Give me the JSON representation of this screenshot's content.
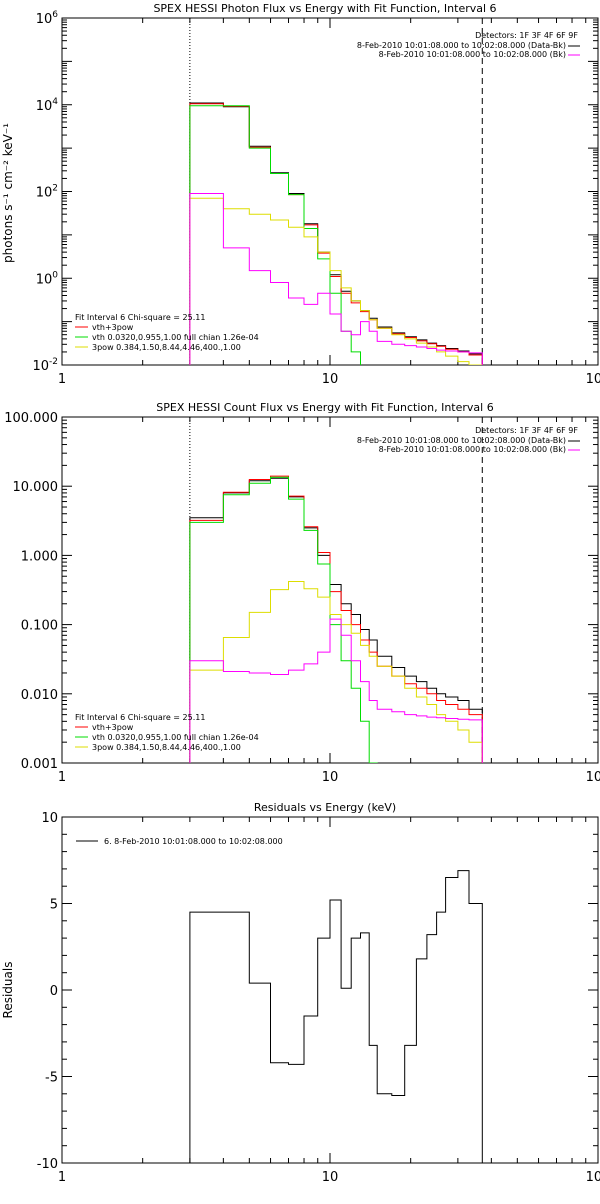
{
  "chart_data": [
    {
      "type": "line",
      "title": "SPEX HESSI Photon Flux vs Energy with Fit Function, Interval 6",
      "xlabel": "",
      "ylabel": "photons s⁻¹ cm⁻² keV⁻¹",
      "xscale": "log",
      "yscale": "log",
      "xlim": [
        1,
        100
      ],
      "ylim": [
        0.01,
        1000000
      ],
      "x_tick_labels": [
        "1",
        "10",
        "100"
      ],
      "y_ticks": [
        {
          "value": 0.01,
          "mantissa": "10",
          "exp": "-2"
        },
        {
          "value": 1,
          "mantissa": "10",
          "exp": "0"
        },
        {
          "value": 100,
          "mantissa": "10",
          "exp": "2"
        },
        {
          "value": 10000,
          "mantissa": "10",
          "exp": "4"
        },
        {
          "value": 1000000,
          "mantissa": "10",
          "exp": "6"
        }
      ],
      "header_lines": [
        "Detectors: 1F 3F 4F 6F 9F",
        "8-Feb-2010 10:01:08.000 to 10:02:08.000 (Data-Bk)",
        "8-Feb-2010 10:01:08.000 to 10:02:08.000 (Bk)"
      ],
      "legend_title": "Fit Interval 6   Chi-square = 25.11",
      "legend_entries": [
        {
          "label": "vth+3pow",
          "color": "#ff0000"
        },
        {
          "label": "vth 0.0320,0.955,1.00  full chian 1.26e-04",
          "color": "#00dd00"
        },
        {
          "label": "3pow 0.384,1.50,8.44,4.46,400.,1.00",
          "color": "#dddd00"
        }
      ],
      "vlines": [
        {
          "x": 3.0,
          "style": "dotted"
        },
        {
          "x": 37.0,
          "style": "dashed"
        }
      ],
      "bin_edges": [
        3.0,
        4.0,
        5.0,
        6.0,
        7.0,
        8.0,
        9.0,
        10.0,
        11.0,
        12.0,
        13.0,
        14.0,
        15.0,
        17.0,
        19.0,
        21.0,
        23.0,
        25.0,
        27.0,
        30.0,
        33.0,
        37.0
      ],
      "series": [
        {
          "color": "#000000",
          "values": [
            11000,
            9000,
            1100,
            270,
            90,
            18,
            4.0,
            1.2,
            0.5,
            0.3,
            0.18,
            0.12,
            0.075,
            0.055,
            0.045,
            0.038,
            0.032,
            0.028,
            0.024,
            0.021,
            0.018
          ]
        },
        {
          "color": "#ff0000",
          "values": [
            10500,
            9200,
            1050,
            260,
            85,
            17,
            3.8,
            1.1,
            0.45,
            0.27,
            0.17,
            0.11,
            0.07,
            0.052,
            0.043,
            0.036,
            0.031,
            0.027,
            0.023,
            0.02,
            0.017
          ]
        },
        {
          "color": "#00dd00",
          "values": [
            9500,
            9500,
            1000,
            260,
            85,
            14,
            2.8,
            0.45,
            0.06,
            0.02,
            0.004
          ]
        },
        {
          "color": "#dddd00",
          "values": [
            70,
            40,
            30,
            22,
            15,
            9,
            4.0,
            1.5,
            0.6,
            0.3,
            0.18,
            0.11,
            0.07,
            0.05,
            0.04,
            0.032,
            0.026,
            0.02,
            0.016,
            0.012,
            0.01
          ]
        },
        {
          "color": "#ff00ff",
          "values": [
            90,
            5.0,
            1.5,
            0.8,
            0.35,
            0.25,
            0.45,
            0.15,
            0.06,
            0.05,
            0.1,
            0.06,
            0.035,
            0.03,
            0.028,
            0.026,
            0.024,
            0.022,
            0.021,
            0.02,
            0.019
          ]
        }
      ]
    },
    {
      "type": "line",
      "title": "SPEX HESSI Count Flux vs Energy with Fit Function, Interval 6",
      "xlabel": "",
      "ylabel": "",
      "xscale": "log",
      "yscale": "log",
      "xlim": [
        1,
        100
      ],
      "ylim": [
        0.001,
        100
      ],
      "x_tick_labels": [
        "1",
        "10",
        "100"
      ],
      "y_ticks": [
        {
          "value": 0.001,
          "label": "0.001"
        },
        {
          "value": 0.01,
          "label": "0.010"
        },
        {
          "value": 0.1,
          "label": "0.100"
        },
        {
          "value": 1,
          "label": "1.000"
        },
        {
          "value": 10,
          "label": "10.000"
        },
        {
          "value": 100,
          "label": "100.000"
        }
      ],
      "header_lines": [
        "Detectors: 1F 3F 4F 6F 9F",
        "8-Feb-2010 10:01:08.000 to 10:02:08.000 (Data-Bk)",
        "8-Feb-2010 10:01:08.000 to 10:02:08.000 (Bk)"
      ],
      "legend_title": "Fit Interval 6   Chi-square = 25.11",
      "legend_entries": [
        {
          "label": "vth+3pow",
          "color": "#ff0000"
        },
        {
          "label": "vth 0.0320,0.955,1.00  full chian 1.26e-04",
          "color": "#00dd00"
        },
        {
          "label": "3pow 0.384,1.50,8.44,4.46,400.,1.00",
          "color": "#dddd00"
        }
      ],
      "vlines": [
        {
          "x": 3.0,
          "style": "dotted"
        },
        {
          "x": 37.0,
          "style": "dashed"
        }
      ],
      "bin_edges": [
        3.0,
        4.0,
        5.0,
        6.0,
        7.0,
        8.0,
        9.0,
        10.0,
        11.0,
        12.0,
        13.0,
        14.0,
        15.0,
        17.0,
        19.0,
        21.0,
        23.0,
        25.0,
        27.0,
        30.0,
        33.0,
        37.0
      ],
      "series": [
        {
          "color": "#000000",
          "values": [
            3.5,
            8.0,
            12.0,
            13.0,
            7.0,
            2.5,
            1.0,
            0.38,
            0.2,
            0.14,
            0.085,
            0.06,
            0.035,
            0.024,
            0.018,
            0.015,
            0.012,
            0.01,
            0.009,
            0.008,
            0.006
          ]
        },
        {
          "color": "#ff0000",
          "values": [
            3.2,
            8.2,
            12.5,
            14.0,
            7.2,
            2.6,
            1.1,
            0.3,
            0.16,
            0.1,
            0.06,
            0.04,
            0.025,
            0.018,
            0.014,
            0.012,
            0.01,
            0.008,
            0.007,
            0.006,
            0.005
          ]
        },
        {
          "color": "#00dd00",
          "values": [
            3.0,
            7.5,
            11.0,
            13.5,
            6.5,
            2.3,
            0.75,
            0.1,
            0.03,
            0.012,
            0.004,
            0.001
          ]
        },
        {
          "color": "#dddd00",
          "values": [
            0.022,
            0.065,
            0.15,
            0.32,
            0.42,
            0.33,
            0.25,
            0.14,
            0.1,
            0.075,
            0.05,
            0.035,
            0.025,
            0.018,
            0.012,
            0.009,
            0.007,
            0.005,
            0.004,
            0.003,
            0.002
          ]
        },
        {
          "color": "#ff00ff",
          "values": [
            0.03,
            0.021,
            0.02,
            0.019,
            0.022,
            0.027,
            0.04,
            0.12,
            0.07,
            0.03,
            0.015,
            0.008,
            0.006,
            0.0055,
            0.005,
            0.0048,
            0.0046,
            0.0045,
            0.0044,
            0.0043,
            0.0042
          ]
        }
      ]
    },
    {
      "type": "line",
      "title": "Residuals vs Energy (keV)",
      "xlabel": "",
      "ylabel": "Residuals",
      "xscale": "log",
      "yscale": "linear",
      "xlim": [
        1,
        100
      ],
      "ylim": [
        -10,
        10
      ],
      "x_tick_labels": [
        "1",
        "10",
        "100"
      ],
      "y_ticks": [
        {
          "value": -10,
          "label": "-10"
        },
        {
          "value": -5,
          "label": "-5"
        },
        {
          "value": 0,
          "label": "0"
        },
        {
          "value": 5,
          "label": "5"
        },
        {
          "value": 10,
          "label": "10"
        }
      ],
      "legend_title": "",
      "legend_entries": [
        {
          "label": "6.  8-Feb-2010 10:01:08.000 to 10:02:08.000",
          "color": "#000000"
        }
      ],
      "bin_edges": [
        3.0,
        4.0,
        5.0,
        6.0,
        7.0,
        8.0,
        9.0,
        10.0,
        11.0,
        12.0,
        13.0,
        14.0,
        15.0,
        17.0,
        19.0,
        21.0,
        23.0,
        25.0,
        27.0,
        30.0,
        33.0,
        37.0
      ],
      "series": [
        {
          "color": "#000000",
          "values": [
            4.5,
            4.5,
            0.4,
            -4.2,
            -4.3,
            -1.5,
            3.0,
            5.2,
            0.1,
            3.0,
            3.3,
            -3.2,
            -6.0,
            -6.1,
            -3.2,
            1.8,
            3.2,
            4.5,
            6.5,
            6.9,
            5.0
          ]
        }
      ]
    }
  ]
}
